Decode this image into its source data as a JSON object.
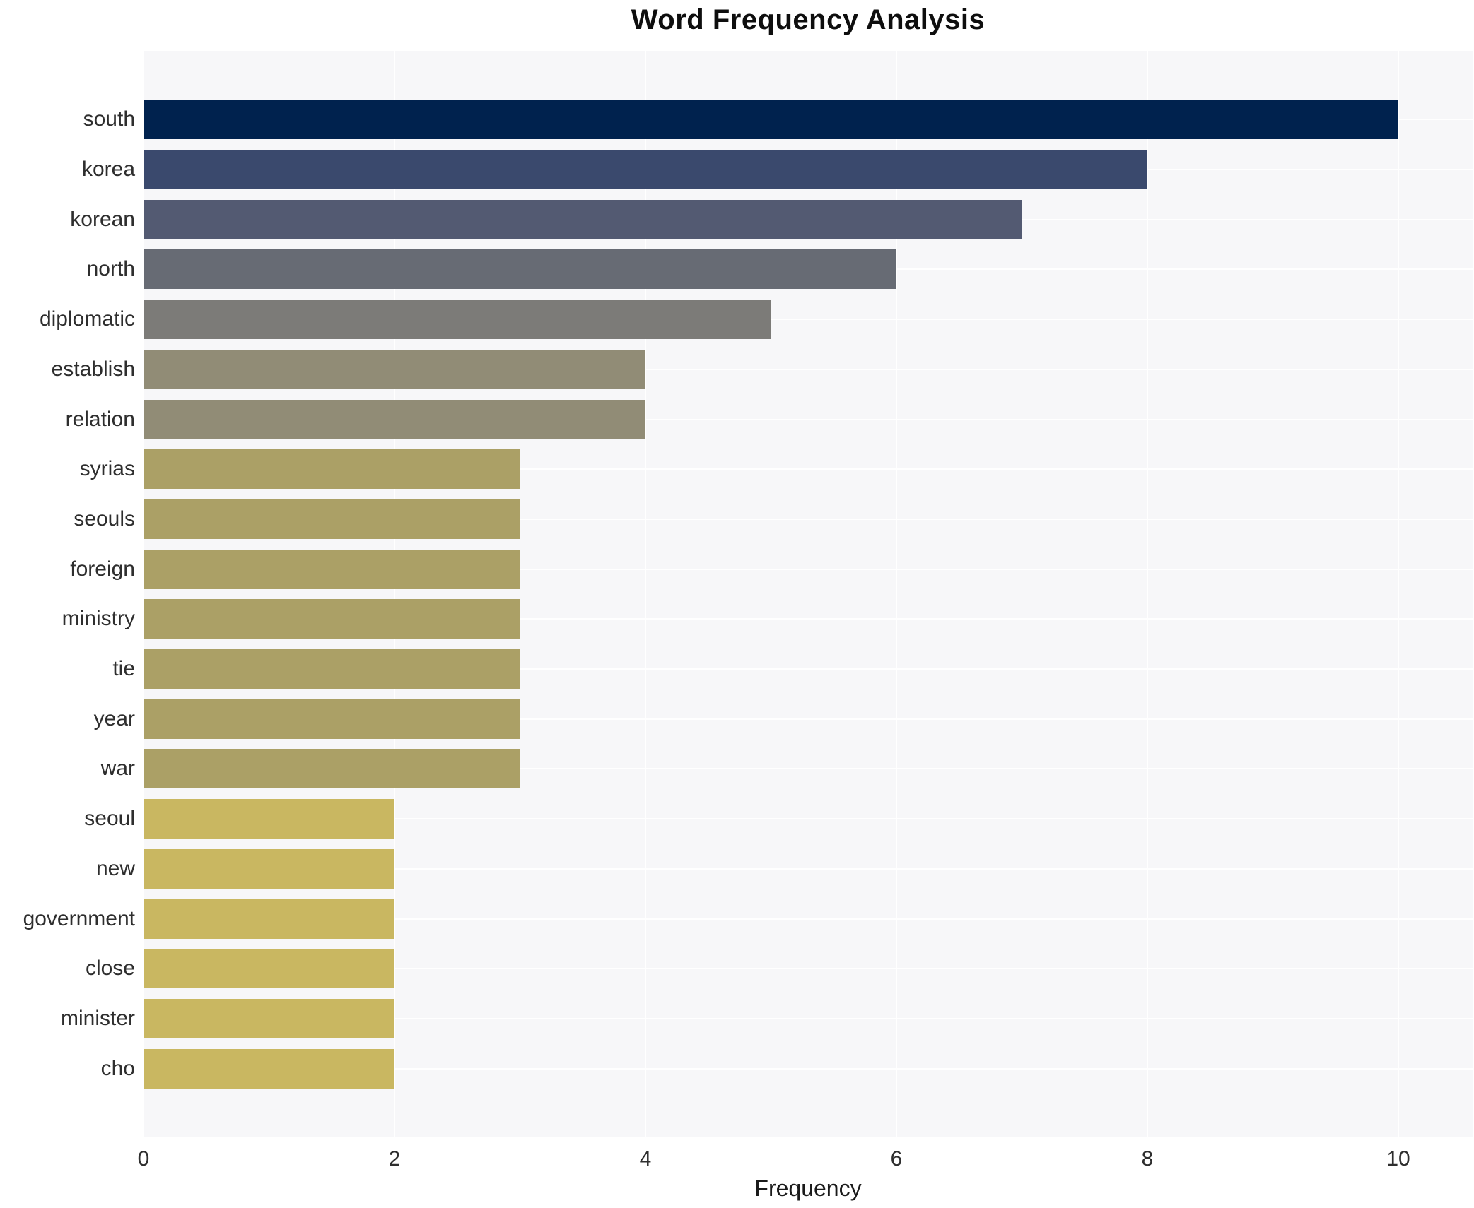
{
  "chart_data": {
    "type": "bar",
    "orientation": "horizontal",
    "title": "Word Frequency Analysis",
    "xlabel": "Frequency",
    "ylabel": "",
    "xlim": [
      0,
      10
    ],
    "xticks": [
      0,
      2,
      4,
      6,
      8,
      10
    ],
    "grid": true,
    "legend": "none",
    "plot_background": "#f7f7f9",
    "gridline_color": "#ffffff",
    "categories": [
      "south",
      "korea",
      "korean",
      "north",
      "diplomatic",
      "establish",
      "relation",
      "syrias",
      "seouls",
      "foreign",
      "ministry",
      "tie",
      "year",
      "war",
      "seoul",
      "new",
      "government",
      "close",
      "minister",
      "cho"
    ],
    "values": [
      10,
      8,
      7,
      6,
      5,
      4,
      4,
      3,
      3,
      3,
      3,
      3,
      3,
      3,
      2,
      2,
      2,
      2,
      2,
      2
    ],
    "bar_colors": [
      "#00224e",
      "#3a496d",
      "#535a72",
      "#676b74",
      "#7c7b78",
      "#918c76",
      "#918c76",
      "#aba066",
      "#aba066",
      "#aba066",
      "#aba066",
      "#aba066",
      "#aba066",
      "#aba066",
      "#c9b761",
      "#c9b761",
      "#c9b761",
      "#c9b761",
      "#c9b761",
      "#c9b761"
    ]
  }
}
